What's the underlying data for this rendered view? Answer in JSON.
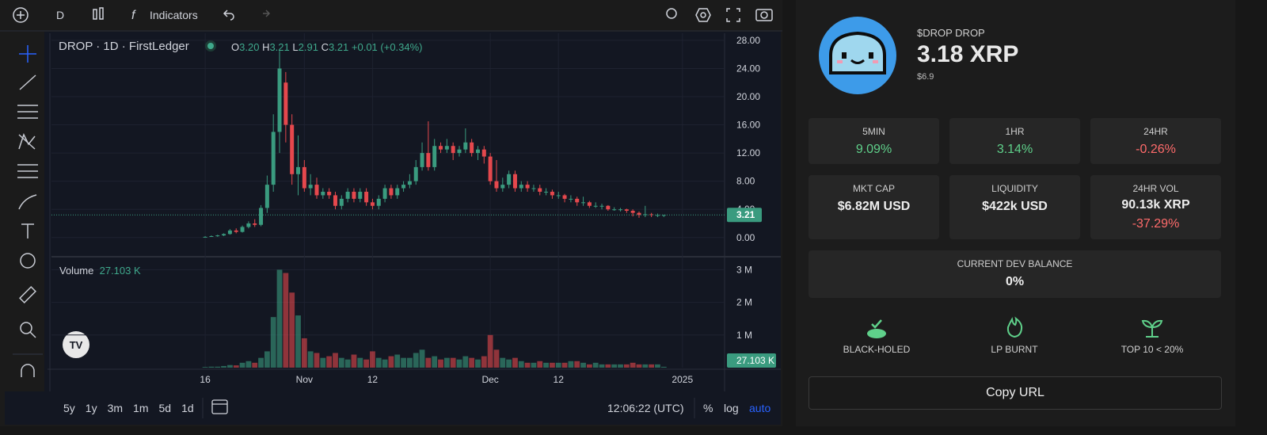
{
  "toolbar": {
    "interval": "D",
    "indicators": "Indicators"
  },
  "legend": {
    "symbol": "DROP · 1D · FirstLedger",
    "o_label": "O",
    "o": "3.20",
    "h_label": "H",
    "h": "3.21",
    "l_label": "L",
    "l": "2.91",
    "c_label": "C",
    "c": "3.21",
    "change": "+0.01 (+0.34%)"
  },
  "chart_data": {
    "type": "candlestick",
    "up_color": "#3a9b7f",
    "down_color": "#e5484d",
    "candles": [
      [
        0.1,
        0.2,
        0.1,
        0.1
      ],
      [
        0.1,
        0.3,
        0.1,
        0.2
      ],
      [
        0.2,
        0.4,
        0.1,
        0.3
      ],
      [
        0.3,
        0.6,
        0.2,
        0.5
      ],
      [
        0.5,
        1.2,
        0.4,
        1.0
      ],
      [
        1.0,
        1.3,
        0.6,
        0.8
      ],
      [
        0.8,
        1.7,
        0.7,
        1.5
      ],
      [
        1.5,
        2.3,
        1.3,
        2.0
      ],
      [
        2.0,
        2.6,
        1.5,
        1.8
      ],
      [
        1.8,
        4.6,
        1.6,
        4.2
      ],
      [
        4.2,
        8.8,
        3.5,
        7.5
      ],
      [
        7.5,
        17.5,
        6.5,
        15
      ],
      [
        15,
        26.5,
        12,
        24
      ],
      [
        22,
        23.5,
        13.5,
        16
      ],
      [
        16,
        17.5,
        7.5,
        9
      ],
      [
        9,
        14.5,
        6,
        10
      ],
      [
        10,
        11,
        6.5,
        7
      ],
      [
        7,
        9,
        6,
        7.5
      ],
      [
        7.5,
        8.5,
        5.5,
        6
      ],
      [
        6,
        7,
        5.5,
        6.5
      ],
      [
        6.5,
        7,
        5.5,
        6
      ],
      [
        6,
        6.5,
        4,
        4.5
      ],
      [
        4.5,
        6,
        4,
        5.5
      ],
      [
        5.5,
        7,
        5,
        6.5
      ],
      [
        6.5,
        7,
        5,
        5.5
      ],
      [
        5.5,
        7,
        5,
        6.5
      ],
      [
        6.5,
        7,
        4.5,
        5
      ],
      [
        5,
        5.5,
        4,
        4.5
      ],
      [
        4.5,
        6,
        4,
        5.5
      ],
      [
        5.5,
        7.5,
        5,
        7
      ],
      [
        7,
        7.5,
        5.5,
        6
      ],
      [
        6,
        7.5,
        5.5,
        7
      ],
      [
        7,
        8,
        6.5,
        7.5
      ],
      [
        7.5,
        9,
        7,
        8
      ],
      [
        8,
        11,
        7.5,
        10
      ],
      [
        10,
        13.5,
        9.5,
        12
      ],
      [
        12,
        16.5,
        9.5,
        10
      ],
      [
        10,
        14,
        9.5,
        13
      ],
      [
        13,
        13.5,
        12,
        12.5
      ],
      [
        12.5,
        14,
        12,
        13
      ],
      [
        13,
        13.5,
        11,
        12
      ],
      [
        12,
        13,
        11.5,
        12.5
      ],
      [
        12.5,
        15.5,
        12,
        13.5
      ],
      [
        13.5,
        14,
        11.5,
        12
      ],
      [
        12,
        13,
        11,
        12.5
      ],
      [
        12.5,
        13,
        10.5,
        11.5
      ],
      [
        11.5,
        12,
        7.5,
        8
      ],
      [
        8,
        11,
        6.5,
        7
      ],
      [
        7,
        8.5,
        6.5,
        7.5
      ],
      [
        7.5,
        9.5,
        7,
        9
      ],
      [
        9,
        9.5,
        6.5,
        7
      ],
      [
        7,
        8,
        6.5,
        7.5
      ],
      [
        7.5,
        8,
        6.5,
        7
      ],
      [
        7,
        7.5,
        6.5,
        7
      ],
      [
        7,
        7.5,
        6,
        6.5
      ],
      [
        6.5,
        7,
        6,
        6.5
      ],
      [
        6.5,
        6.8,
        5.5,
        6
      ],
      [
        6,
        6.5,
        5.5,
        6
      ],
      [
        6,
        6.2,
        5,
        5.5
      ],
      [
        5.5,
        6,
        5,
        5.5
      ],
      [
        5.5,
        5.8,
        4.5,
        5
      ],
      [
        5,
        5.8,
        4.5,
        5
      ],
      [
        5,
        5.2,
        4.2,
        4.5
      ],
      [
        4.5,
        5,
        4.2,
        4.5
      ],
      [
        4.5,
        4.8,
        4,
        4.5
      ],
      [
        4.5,
        4.6,
        3.8,
        4
      ],
      [
        4,
        4.3,
        3.8,
        4
      ],
      [
        4,
        4.2,
        3.7,
        4
      ],
      [
        4,
        4.1,
        3.5,
        3.8
      ],
      [
        3.8,
        4,
        3,
        3.5
      ],
      [
        3.5,
        3.7,
        2.8,
        3.2
      ],
      [
        3.2,
        4.5,
        2.9,
        3.3
      ],
      [
        3.3,
        3.5,
        2.9,
        3.2
      ],
      [
        3.2,
        3.4,
        2.9,
        3.2
      ],
      [
        3.2,
        3.21,
        2.91,
        3.21
      ]
    ],
    "xlim": [
      -24.8,
      83.8
    ],
    "xticks": [
      {
        "value": 0,
        "label": "16"
      },
      {
        "value": 16,
        "label": "Nov"
      },
      {
        "value": 27,
        "label": "12"
      },
      {
        "value": 46,
        "label": "Dec"
      },
      {
        "value": 57,
        "label": "12"
      },
      {
        "value": 77,
        "label": "2025"
      }
    ],
    "ylim": [
      -2.5,
      29
    ],
    "yticks": [
      {
        "value": 0,
        "label": "0.00"
      },
      {
        "value": 4,
        "label": "4.00"
      },
      {
        "value": 8,
        "label": "8.00"
      },
      {
        "value": 12,
        "label": "12.00"
      },
      {
        "value": 16,
        "label": "16.00"
      },
      {
        "value": 20,
        "label": "20.00"
      },
      {
        "value": 24,
        "label": "24.00"
      },
      {
        "value": 28,
        "label": "28.00"
      }
    ],
    "last_price": {
      "value": 3.21,
      "label": "3.21"
    },
    "volume": {
      "title": "Volume",
      "value": "27.103 K",
      "values": [
        0.02,
        0.03,
        0.03,
        0.05,
        0.08,
        0.07,
        0.15,
        0.2,
        0.15,
        0.3,
        0.5,
        1.55,
        3.0,
        2.9,
        2.3,
        1.6,
        0.9,
        0.5,
        0.45,
        0.3,
        0.35,
        0.45,
        0.3,
        0.25,
        0.4,
        0.3,
        0.25,
        0.5,
        0.3,
        0.25,
        0.35,
        0.4,
        0.3,
        0.3,
        0.45,
        0.55,
        0.3,
        0.35,
        0.25,
        0.3,
        0.3,
        0.25,
        0.35,
        0.3,
        0.25,
        0.35,
        1.0,
        0.55,
        0.3,
        0.25,
        0.3,
        0.2,
        0.15,
        0.15,
        0.2,
        0.15,
        0.15,
        0.15,
        0.15,
        0.2,
        0.2,
        0.15,
        0.1,
        0.15,
        0.1,
        0.1,
        0.1,
        0.1,
        0.1,
        0.15,
        0.1,
        0.1,
        0.1,
        0.1,
        0.027103
      ],
      "ylim": [
        0,
        3.35
      ],
      "yticks": [
        {
          "value": 1,
          "label": "1 M"
        },
        {
          "value": 2,
          "label": "2 M"
        },
        {
          "value": 3,
          "label": "3 M"
        }
      ],
      "last": {
        "value": 0.027103,
        "label": "27.103 K"
      }
    }
  },
  "bottom_bar": {
    "ranges": [
      "5y",
      "1y",
      "3m",
      "1m",
      "5d",
      "1d"
    ],
    "time": "12:06:22 (UTC)",
    "percent": "%",
    "log": "log",
    "auto": "auto"
  },
  "token": {
    "name": "$DROP DROP",
    "price": "3.18 XRP",
    "usd": "$6.9"
  },
  "stats": [
    {
      "label": "5MIN",
      "value": "9.09%"
    },
    {
      "label": "1HR",
      "value": "3.14%"
    },
    {
      "label": "24HR",
      "value": "-0.26%"
    }
  ],
  "metrics": [
    {
      "label": "MKT CAP",
      "value": "$6.82M USD"
    },
    {
      "label": "LIQUIDITY",
      "value": "$422k USD"
    },
    {
      "label": "24HR VOL",
      "value": "90.13k XRP",
      "change": "-37.29%"
    }
  ],
  "dev_balance": {
    "label": "CURRENT DEV BALANCE",
    "value": "0%"
  },
  "badges": [
    "BLACK-HOLED",
    "LP BURNT",
    "TOP 10 < 20%"
  ],
  "copy_url": "Copy URL"
}
